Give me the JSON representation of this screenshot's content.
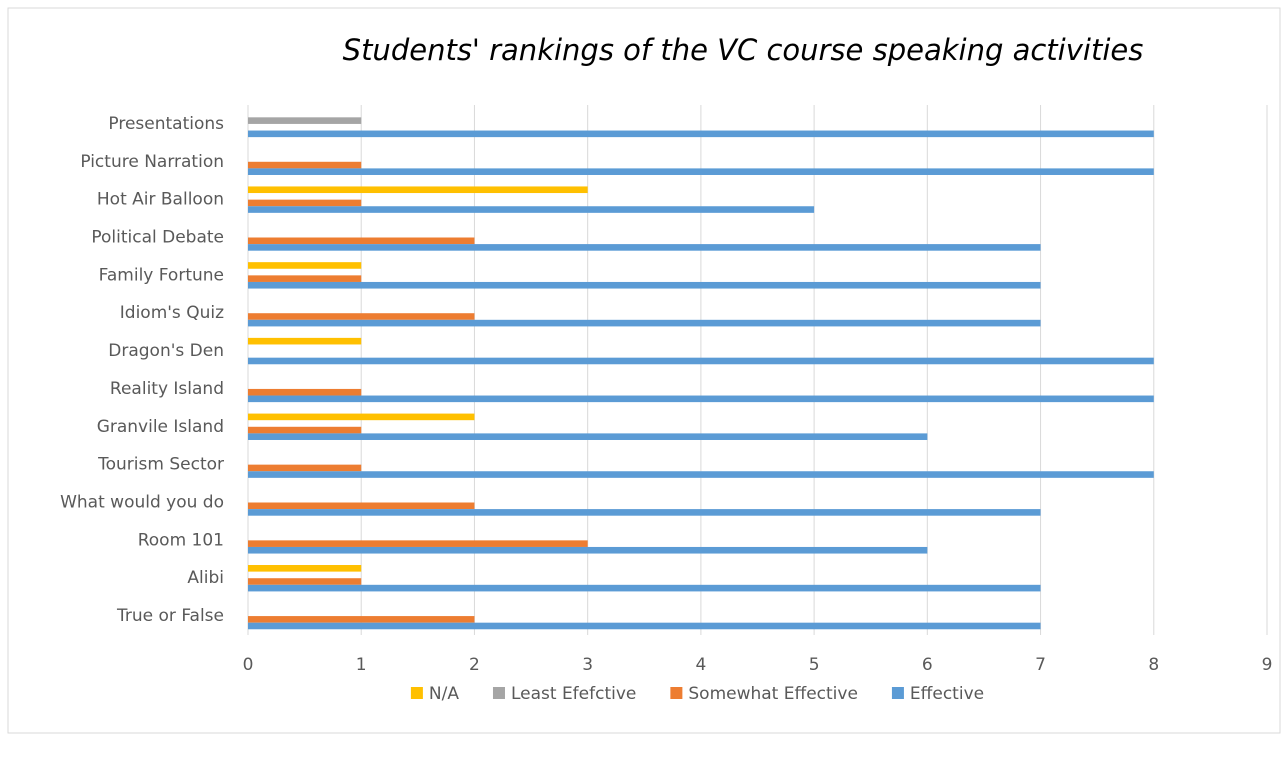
{
  "chart_data": {
    "type": "hbar",
    "title": "Students' rankings of the VC course speaking activities",
    "categories": [
      "Presentations",
      "Picture Narration",
      "Hot Air Balloon",
      "Political Debate",
      "Family Fortune",
      "Idiom's Quiz",
      "Dragon's Den",
      "Reality Island",
      "Granvile Island",
      "Tourism Sector",
      "What would you do",
      "Room 101",
      "Alibi",
      "True or False"
    ],
    "series": [
      {
        "name": "N/A",
        "color": "#ffc000",
        "values": [
          0,
          0,
          3,
          0,
          1,
          0,
          1,
          0,
          2,
          0,
          0,
          0,
          1,
          0
        ]
      },
      {
        "name": "Least Efefctive",
        "color": "#a5a5a5",
        "values": [
          1,
          0,
          0,
          0,
          0,
          0,
          0,
          0,
          0,
          0,
          0,
          0,
          0,
          0
        ]
      },
      {
        "name": "Somewhat Effective",
        "color": "#ed7d31",
        "values": [
          0,
          1,
          1,
          2,
          1,
          2,
          0,
          1,
          1,
          1,
          2,
          3,
          1,
          2
        ]
      },
      {
        "name": "Effective",
        "color": "#5b9bd5",
        "values": [
          8,
          8,
          5,
          7,
          7,
          7,
          8,
          8,
          6,
          8,
          7,
          6,
          7,
          7
        ]
      }
    ],
    "xlim": [
      0,
      9
    ],
    "xticks": [
      0,
      1,
      2,
      3,
      4,
      5,
      6,
      7,
      8,
      9
    ],
    "grid": true,
    "legend": "bottom"
  }
}
